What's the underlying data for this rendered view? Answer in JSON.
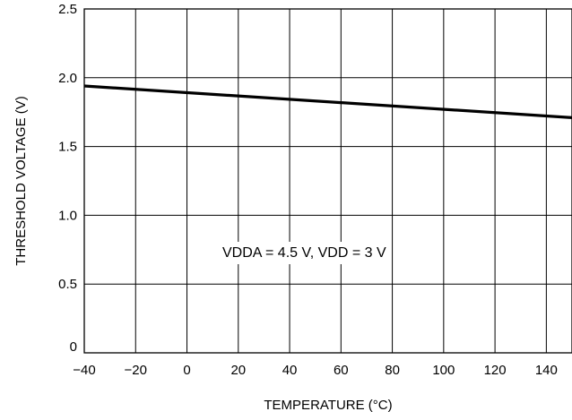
{
  "chart_data": {
    "type": "line",
    "xlabel": "TEMPERATURE (°C)",
    "ylabel": "THRESHOLD VOLTAGE (V)",
    "xlim": [
      -40,
      150
    ],
    "ylim": [
      0,
      2.5
    ],
    "x_ticks": [
      -40,
      -20,
      0,
      20,
      40,
      60,
      80,
      100,
      120,
      140
    ],
    "x_tick_labels": [
      "−40",
      "−20",
      "0",
      "20",
      "40",
      "60",
      "80",
      "100",
      "120",
      "140"
    ],
    "y_ticks": [
      0,
      0.5,
      1.0,
      1.5,
      2.0,
      2.5
    ],
    "y_tick_labels": [
      "0",
      "0.5",
      "1.0",
      "1.5",
      "2.0",
      "2.5"
    ],
    "grid": true,
    "annotation": "VDDA = 4.5 V, VDD = 3 V",
    "series": [
      {
        "x": [
          -40,
          150
        ],
        "y": [
          1.94,
          1.71
        ]
      }
    ]
  }
}
